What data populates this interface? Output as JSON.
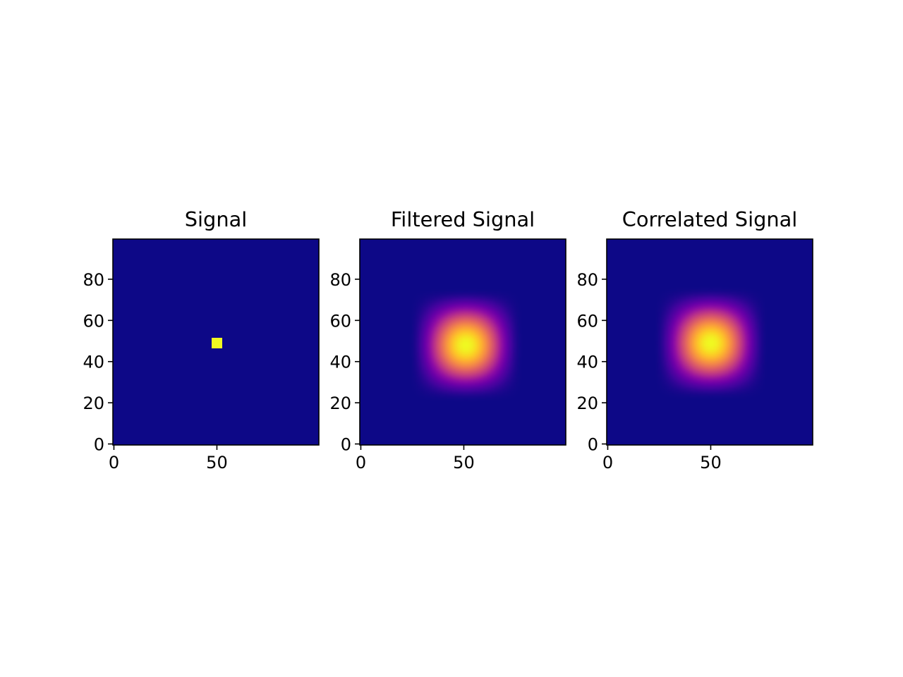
{
  "chart_data": [
    {
      "type": "heatmap",
      "title": "Signal",
      "colormap": "plasma",
      "grid": false,
      "shape": [
        100,
        100
      ],
      "xlim": [
        -0.5,
        99.5
      ],
      "ylim": [
        99.5,
        -0.5
      ],
      "x_ticks": [
        0,
        50
      ],
      "y_ticks": [
        0,
        20,
        40,
        60,
        80
      ],
      "pattern": "point",
      "center": [
        50,
        50
      ],
      "width": 5,
      "value_range": [
        0,
        1
      ]
    },
    {
      "type": "heatmap",
      "title": "Filtered Signal",
      "colormap": "plasma",
      "grid": false,
      "shape": [
        100,
        100
      ],
      "xlim": [
        -0.5,
        99.5
      ],
      "ylim": [
        99.5,
        -0.5
      ],
      "x_ticks": [
        0,
        50
      ],
      "y_ticks": [
        0,
        20,
        40,
        60,
        80
      ],
      "pattern": "blur",
      "center": [
        51,
        51
      ],
      "width": 28,
      "value_range": [
        0,
        1
      ]
    },
    {
      "type": "heatmap",
      "title": "Correlated Signal",
      "colormap": "plasma",
      "grid": false,
      "shape": [
        100,
        100
      ],
      "xlim": [
        -0.5,
        99.5
      ],
      "ylim": [
        99.5,
        -0.5
      ],
      "x_ticks": [
        0,
        50
      ],
      "y_ticks": [
        0,
        20,
        40,
        60,
        80
      ],
      "pattern": "blur",
      "center": [
        50,
        50
      ],
      "width": 28,
      "value_range": [
        0,
        1
      ]
    }
  ]
}
